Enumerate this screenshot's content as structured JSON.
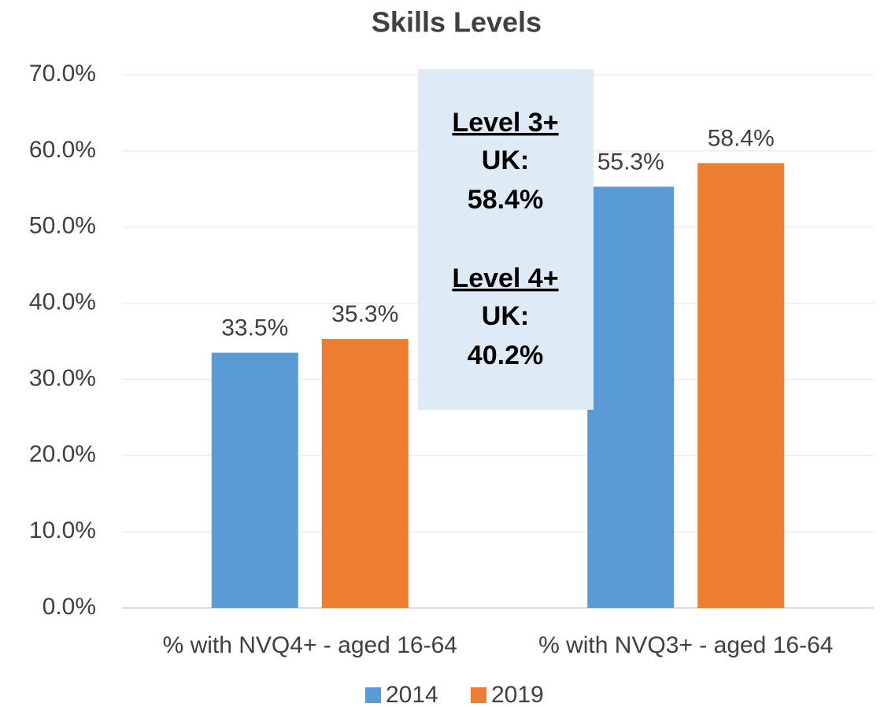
{
  "chart_data": {
    "type": "bar",
    "title": "Skills Levels",
    "categories": [
      "% with NVQ4+ - aged 16-64",
      "% with NVQ3+ - aged 16-64"
    ],
    "series": [
      {
        "name": "2014",
        "color": "#5b9bd5",
        "values": [
          33.5,
          55.3
        ],
        "value_labels": [
          "33.5%",
          "55.3%"
        ]
      },
      {
        "name": "2019",
        "color": "#ed7d31",
        "values": [
          35.3,
          58.4
        ],
        "value_labels": [
          "35.3%",
          "58.4%"
        ]
      }
    ],
    "ylim": [
      0,
      70
    ],
    "yticks": [
      {
        "value": 0,
        "label": "0.0%"
      },
      {
        "value": 10,
        "label": "10.0%"
      },
      {
        "value": 20,
        "label": "20.0%"
      },
      {
        "value": 30,
        "label": "30.0%"
      },
      {
        "value": 40,
        "label": "40.0%"
      },
      {
        "value": 50,
        "label": "50.0%"
      },
      {
        "value": 60,
        "label": "60.0%"
      },
      {
        "value": 70,
        "label": "70.0%"
      }
    ],
    "grid": true,
    "legend": "bottom",
    "annotations": [
      {
        "heading": "Level 3+",
        "lines": [
          "UK:",
          "58.4%"
        ]
      },
      {
        "heading": "Level 4+",
        "lines": [
          "UK:",
          "40.2%"
        ]
      }
    ]
  }
}
